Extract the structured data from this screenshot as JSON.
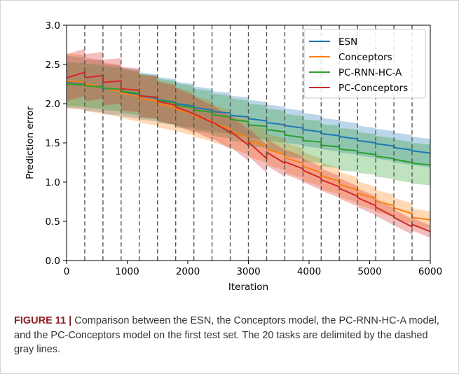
{
  "caption": {
    "label": "FIGURE 11 |",
    "text": " Comparison between the ESN, the Conceptors model, the PC-RNN-HC-A model, and the PC-Conceptors model on the first test set. The 20 tasks are delimited by the dashed gray lines."
  },
  "chart_data": {
    "type": "line",
    "title": "",
    "xlabel": "Iteration",
    "ylabel": "Prediction error",
    "xlim": [
      0,
      6000
    ],
    "ylim": [
      0.0,
      3.0
    ],
    "xticks": [
      0,
      1000,
      2000,
      3000,
      4000,
      5000,
      6000
    ],
    "xtick_labels": [
      "0",
      "1000",
      "2000",
      "3000",
      "4000",
      "5000",
      "6000"
    ],
    "yticks": [
      0.0,
      0.5,
      1.0,
      1.5,
      2.0,
      2.5,
      3.0
    ],
    "ytick_labels": [
      "0.0",
      "0.5",
      "1.0",
      "1.5",
      "2.0",
      "2.5",
      "3.0"
    ],
    "grid": false,
    "legend_position": "top-right",
    "task_boundaries": [
      300,
      600,
      900,
      1200,
      1500,
      1800,
      2100,
      2400,
      2700,
      3000,
      3300,
      3600,
      3900,
      4200,
      4500,
      4800,
      5100,
      5400,
      5700
    ],
    "boundary_color": "#555555",
    "task_starts": [
      0,
      300,
      600,
      900,
      1200,
      1500,
      1800,
      2100,
      2400,
      2700,
      3000,
      3300,
      3600,
      3900,
      4200,
      4500,
      4800,
      5100,
      5400,
      5700
    ],
    "task_length": 300,
    "series": [
      {
        "name": "ESN",
        "color": "#1f77b4",
        "start": [
          2.28,
          2.24,
          2.19,
          2.15,
          2.1,
          2.05,
          2.0,
          1.95,
          1.9,
          1.85,
          1.81,
          1.76,
          1.72,
          1.67,
          1.62,
          1.58,
          1.53,
          1.49,
          1.44,
          1.4
        ],
        "end": [
          2.26,
          2.22,
          2.17,
          2.12,
          2.07,
          2.02,
          1.97,
          1.92,
          1.88,
          1.83,
          1.78,
          1.73,
          1.69,
          1.64,
          1.59,
          1.55,
          1.5,
          1.46,
          1.41,
          1.37
        ],
        "band": [
          0.33,
          0.33,
          0.32,
          0.31,
          0.3,
          0.29,
          0.28,
          0.27,
          0.26,
          0.25,
          0.24,
          0.23,
          0.22,
          0.21,
          0.2,
          0.2,
          0.19,
          0.19,
          0.19,
          0.18
        ]
      },
      {
        "name": "Conceptors",
        "color": "#ff7f0e",
        "start": [
          2.29,
          2.25,
          2.2,
          2.14,
          2.07,
          2.0,
          1.93,
          1.84,
          1.75,
          1.65,
          1.53,
          1.42,
          1.31,
          1.2,
          1.08,
          0.97,
          0.86,
          0.76,
          0.67,
          0.55
        ],
        "end": [
          2.27,
          2.21,
          2.16,
          2.09,
          2.03,
          1.95,
          1.87,
          1.78,
          1.68,
          1.57,
          1.46,
          1.35,
          1.24,
          1.12,
          1.01,
          0.9,
          0.79,
          0.7,
          0.6,
          0.52
        ],
        "band": [
          0.35,
          0.34,
          0.33,
          0.32,
          0.31,
          0.3,
          0.28,
          0.26,
          0.24,
          0.22,
          0.21,
          0.2,
          0.19,
          0.18,
          0.17,
          0.16,
          0.15,
          0.14,
          0.13,
          0.11
        ]
      },
      {
        "name": "PC-RNN-HC-A",
        "color": "#2ca02c",
        "start": [
          2.25,
          2.23,
          2.2,
          2.16,
          2.1,
          2.04,
          1.98,
          1.92,
          1.86,
          1.8,
          1.73,
          1.67,
          1.6,
          1.53,
          1.47,
          1.42,
          1.38,
          1.33,
          1.29,
          1.24
        ],
        "end": [
          2.24,
          2.21,
          2.18,
          2.13,
          2.08,
          2.01,
          1.95,
          1.89,
          1.83,
          1.77,
          1.71,
          1.64,
          1.57,
          1.51,
          1.45,
          1.4,
          1.35,
          1.3,
          1.25,
          1.22
        ],
        "band": [
          0.28,
          0.28,
          0.28,
          0.28,
          0.28,
          0.28,
          0.28,
          0.27,
          0.27,
          0.27,
          0.27,
          0.27,
          0.27,
          0.27,
          0.27,
          0.27,
          0.26,
          0.26,
          0.26,
          0.26
        ]
      },
      {
        "name": "PC-Conceptors",
        "color": "#d62728",
        "start": [
          2.33,
          2.33,
          2.27,
          2.19,
          2.1,
          2.03,
          1.96,
          1.87,
          1.77,
          1.65,
          1.51,
          1.38,
          1.26,
          1.15,
          1.03,
          0.92,
          0.8,
          0.68,
          0.55,
          0.46
        ],
        "end": [
          2.4,
          2.36,
          2.29,
          2.17,
          2.08,
          1.98,
          1.87,
          1.76,
          1.63,
          1.47,
          1.3,
          1.24,
          1.17,
          1.05,
          0.94,
          0.82,
          0.7,
          0.56,
          0.43,
          0.37
        ],
        "band": [
          0.3,
          0.3,
          0.29,
          0.28,
          0.27,
          0.25,
          0.24,
          0.22,
          0.21,
          0.2,
          0.18,
          0.17,
          0.16,
          0.15,
          0.14,
          0.13,
          0.12,
          0.11,
          0.1,
          0.08
        ]
      }
    ]
  }
}
